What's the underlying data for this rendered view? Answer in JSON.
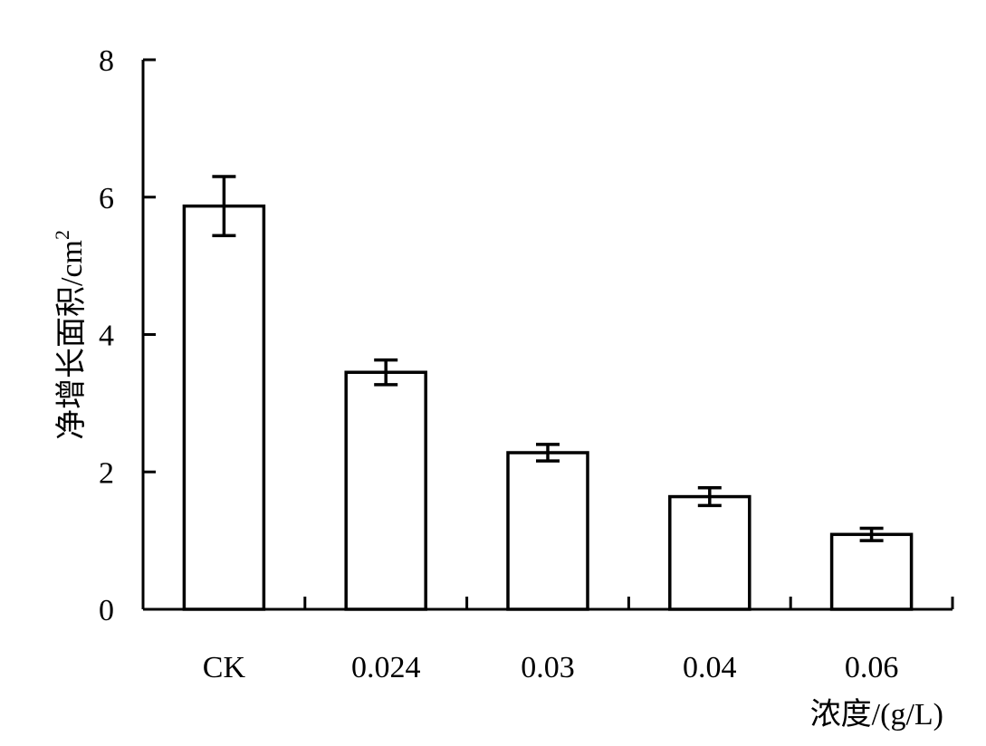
{
  "chart_data": {
    "type": "bar",
    "categories": [
      "CK",
      "0.024",
      "0.03",
      "0.04",
      "0.06"
    ],
    "values": [
      5.87,
      3.45,
      2.28,
      1.64,
      1.09
    ],
    "errors": [
      0.43,
      0.18,
      0.12,
      0.13,
      0.09
    ],
    "xlabel": "浓度/(g/L)",
    "ylabel": "净增长面积/cm",
    "ylabel_sup": "2",
    "ylim": [
      0,
      8
    ],
    "yticks": [
      0,
      2,
      4,
      6,
      8
    ],
    "grid": false,
    "legend": "none"
  }
}
